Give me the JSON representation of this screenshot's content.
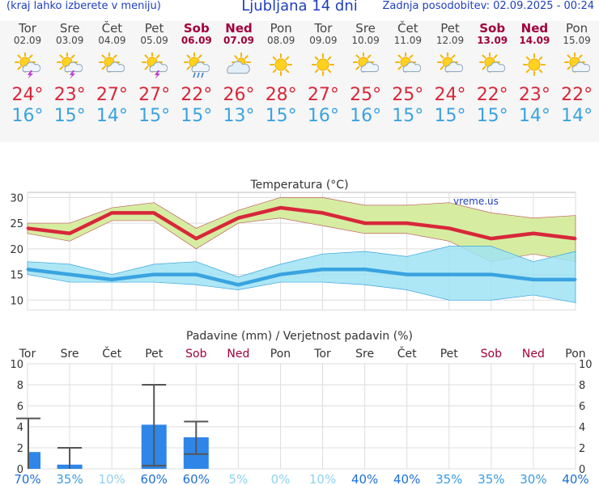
{
  "header": {
    "left_note": "(kraj lahko izberete v meniju)",
    "title": "Ljubljana 14 dni",
    "updated": "Zadnja posodobitev: 02.09.2025 - 00:24"
  },
  "days": [
    {
      "name": "Tor",
      "date": "02.09",
      "weekend": false,
      "icon": "sun-cloud-thunder-icon",
      "tmax": "24°",
      "tmin": "16°"
    },
    {
      "name": "Sre",
      "date": "03.09",
      "weekend": false,
      "icon": "sun-cloud-thunder-icon",
      "tmax": "23°",
      "tmin": "15°"
    },
    {
      "name": "Čet",
      "date": "04.09",
      "weekend": false,
      "icon": "sun-cloud-icon",
      "tmax": "27°",
      "tmin": "14°"
    },
    {
      "name": "Pet",
      "date": "05.09",
      "weekend": false,
      "icon": "sun-cloud-thunder-icon",
      "tmax": "27°",
      "tmin": "15°"
    },
    {
      "name": "Sob",
      "date": "06.09",
      "weekend": true,
      "icon": "sun-cloud-rain-icon",
      "tmax": "22°",
      "tmin": "15°"
    },
    {
      "name": "Ned",
      "date": "07.09",
      "weekend": true,
      "icon": "cloud-icon",
      "tmax": "26°",
      "tmin": "13°"
    },
    {
      "name": "Pon",
      "date": "08.09",
      "weekend": false,
      "icon": "sun-icon",
      "tmax": "28°",
      "tmin": "15°"
    },
    {
      "name": "Tor",
      "date": "09.09",
      "weekend": false,
      "icon": "sun-icon",
      "tmax": "27°",
      "tmin": "16°"
    },
    {
      "name": "Sre",
      "date": "10.09",
      "weekend": false,
      "icon": "sun-cloud-icon",
      "tmax": "25°",
      "tmin": "16°"
    },
    {
      "name": "Čet",
      "date": "11.09",
      "weekend": false,
      "icon": "sun-cloud-icon",
      "tmax": "25°",
      "tmin": "15°"
    },
    {
      "name": "Pet",
      "date": "12.09",
      "weekend": false,
      "icon": "sun-cloud-icon",
      "tmax": "24°",
      "tmin": "15°"
    },
    {
      "name": "Sob",
      "date": "13.09",
      "weekend": true,
      "icon": "sun-cloud-icon",
      "tmax": "22°",
      "tmin": "15°"
    },
    {
      "name": "Ned",
      "date": "14.09",
      "weekend": true,
      "icon": "sun-icon",
      "tmax": "23°",
      "tmin": "14°"
    },
    {
      "name": "Pon",
      "date": "15.09",
      "weekend": false,
      "icon": "sun-cloud-icon",
      "tmax": "22°",
      "tmin": "14°"
    }
  ],
  "colors": {
    "title_blue": "#1f3fbf",
    "weekend": "#a0003a",
    "tmax_red": "#d8273a",
    "tmin_blue": "#3aa3e0",
    "max_band": "#d4ec9c",
    "min_band": "#9fe3f3",
    "band_overlap": "#7fd07a",
    "bar_blue": "#2f86e8",
    "whisker": "#555555"
  },
  "chart_data": [
    {
      "type": "line",
      "title": "Temperatura (°C)",
      "watermark": "vreme.us",
      "x": [
        0,
        1,
        2,
        3,
        4,
        5,
        6,
        7,
        8,
        9,
        10,
        11,
        12,
        13
      ],
      "ylim": [
        8,
        31
      ],
      "yticks": [
        10,
        15,
        20,
        25,
        30
      ],
      "grid": true,
      "series": [
        {
          "values": [
            24,
            23,
            27,
            27,
            22,
            26,
            28,
            27,
            25,
            25,
            24,
            22,
            23,
            22
          ],
          "lower": [
            23,
            21.5,
            25.5,
            25.5,
            20,
            25,
            26,
            24.5,
            23,
            23,
            21.5,
            17.5,
            19,
            17.5
          ],
          "upper": [
            25,
            25,
            28,
            29,
            24,
            27.5,
            30,
            30,
            28.5,
            28.5,
            29,
            27,
            26,
            26.5
          ]
        },
        {
          "values": [
            16,
            15,
            14,
            15,
            15,
            13,
            15,
            16,
            16,
            15,
            15,
            15,
            14,
            14
          ],
          "lower": [
            15,
            13.5,
            13.5,
            13.5,
            13,
            12,
            13.5,
            13.5,
            13,
            12,
            10,
            10,
            11,
            9.5
          ],
          "upper": [
            17.5,
            17,
            15,
            17,
            17.5,
            14.5,
            17,
            19,
            19.5,
            18.5,
            20.5,
            20.5,
            17.5,
            19.5
          ]
        }
      ]
    },
    {
      "type": "bar",
      "title": "Padavine (mm) / Verjetnost padavin (%)",
      "categories": [
        "Tor",
        "Sre",
        "Čet",
        "Pet",
        "Sob",
        "Ned",
        "Pon",
        "Tor",
        "Sre",
        "Čet",
        "Pet",
        "Sob",
        "Ned",
        "Pon"
      ],
      "ylim": [
        0,
        10
      ],
      "yticks": [
        0,
        2,
        4,
        6,
        8,
        10
      ],
      "grid": true,
      "values": [
        1.6,
        0.4,
        0,
        4.2,
        3.0,
        0,
        0,
        0,
        0,
        0,
        0,
        0,
        0,
        0
      ],
      "err_low": [
        0,
        0,
        0,
        0.3,
        1.4,
        0,
        0,
        0,
        0,
        0,
        0,
        0,
        0,
        0
      ],
      "err_high": [
        4.8,
        2.0,
        0,
        8.0,
        4.5,
        0,
        0,
        0,
        0,
        0,
        0,
        0,
        0,
        0
      ],
      "probability": [
        "70%",
        "35%",
        "10%",
        "60%",
        "60%",
        "5%",
        "0%",
        "10%",
        "40%",
        "40%",
        "35%",
        "35%",
        "30%",
        "40%"
      ],
      "probability_value": [
        70,
        35,
        10,
        60,
        60,
        5,
        0,
        10,
        40,
        40,
        35,
        35,
        30,
        40
      ]
    }
  ]
}
